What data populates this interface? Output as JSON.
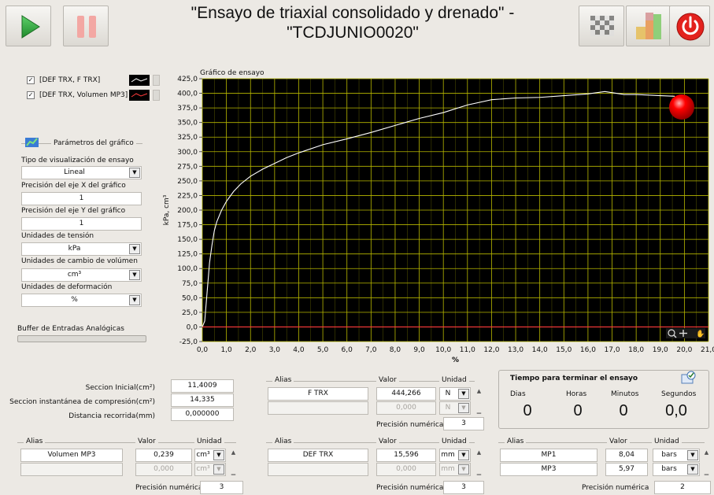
{
  "toolbar": {
    "title_line1": "\"Ensayo de triaxial consolidado y drenado\" -",
    "title_line2": "\"TCDJUNIO0020\""
  },
  "legend": {
    "items": [
      {
        "label": "[DEF TRX, F TRX]",
        "checked": true,
        "color": "#ffffff"
      },
      {
        "label": "[DEF TRX, Volumen MP3]",
        "checked": true,
        "color": "#ff3b3b"
      }
    ]
  },
  "params": {
    "header": "Parámetros del gráfico",
    "viz_label": "Tipo de visualización de ensayo",
    "viz_value": "Lineal",
    "x_prec_label": "Precisión del eje X del gráfico",
    "x_prec_value": "1",
    "y_prec_label": "Precisión del eje Y del gráfico",
    "y_prec_value": "1",
    "stress_label": "Unidades de tensión",
    "stress_value": "kPa",
    "vol_label": "Unidades de cambio de volúmen",
    "vol_value": "cm³",
    "def_label": "Unidades de deformación",
    "def_value": "%"
  },
  "buffer": {
    "label": "Buffer de Entradas Analógicas",
    "level": 0.0
  },
  "chart": {
    "caption": "Gráfico de ensayo",
    "ylabel": "kPa, cm³",
    "xlabel": "%",
    "bg": "#000000",
    "grid_color": "#b8b800",
    "line_color": "#ffffff",
    "zero_line_color": "#ff3030",
    "led_color": "#ff0000"
  },
  "chart_data": {
    "type": "line",
    "title": "Gráfico de ensayo",
    "xlabel": "%",
    "ylabel": "kPa, cm³",
    "xlim": [
      0,
      21
    ],
    "ylim": [
      -25,
      425
    ],
    "x_ticks": [
      "0,0",
      "1,0",
      "2,0",
      "3,0",
      "4,0",
      "5,0",
      "6,0",
      "7,0",
      "8,0",
      "9,0",
      "10,0",
      "11,0",
      "12,0",
      "13,0",
      "14,0",
      "15,0",
      "16,0",
      "17,0",
      "18,0",
      "19,0",
      "20,0",
      "21,0"
    ],
    "y_ticks": [
      "-25,0",
      "0,0",
      "25,0",
      "50,0",
      "75,0",
      "100,0",
      "125,0",
      "150,0",
      "175,0",
      "200,0",
      "225,0",
      "250,0",
      "275,0",
      "300,0",
      "325,0",
      "350,0",
      "375,0",
      "400,0",
      "425,0"
    ],
    "grid": true,
    "series": [
      {
        "name": "[DEF TRX, F TRX]",
        "color": "#ffffff",
        "x": [
          0.0,
          0.1,
          0.2,
          0.3,
          0.4,
          0.5,
          0.6,
          0.8,
          1.0,
          1.3,
          1.6,
          2.0,
          2.5,
          3.0,
          3.5,
          4.0,
          5.0,
          6.0,
          7.0,
          8.0,
          9.0,
          10.0,
          11.0,
          12.0,
          13.0,
          14.0,
          15.0,
          16.0,
          16.7,
          17.5,
          18.0,
          19.0,
          19.6
        ],
        "y": [
          0,
          10,
          60,
          110,
          140,
          165,
          180,
          200,
          215,
          232,
          245,
          258,
          270,
          280,
          290,
          298,
          312,
          322,
          333,
          345,
          357,
          367,
          380,
          389,
          392,
          393,
          396,
          399,
          403,
          398,
          398,
          396,
          395
        ]
      },
      {
        "name": "[DEF TRX, Volumen MP3]",
        "color": "#ff3b3b",
        "x": [
          0.0,
          21.0
        ],
        "y": [
          0,
          0
        ]
      }
    ]
  },
  "stats": {
    "s1_label": "Seccion Inicial(cm²)",
    "s1_value": "11,4009",
    "s2_label": "Seccion instantánea de compresión(cm²)",
    "s2_value": "14,335",
    "s3_label": "Distancia recorrida(mm)",
    "s3_value": "0,000000"
  },
  "force": {
    "alias_h": "Alias",
    "valor_h": "Valor",
    "unidad_h": "Unidad",
    "row1": {
      "alias": "F TRX",
      "value": "444,266",
      "unit": "N"
    },
    "row2": {
      "alias": "",
      "value": "0,000",
      "unit": "N"
    },
    "prec_label": "Precisión numérica",
    "prec_value": "3"
  },
  "timer": {
    "title": "Tiempo para terminar el ensayo",
    "dias_label": "Dias",
    "horas_label": "Horas",
    "min_label": "Minutos",
    "seg_label": "Segundos",
    "dias": "0",
    "horas": "0",
    "min": "0",
    "seg": "0,0"
  },
  "volume": {
    "alias_h": "Alias",
    "valor_h": "Valor",
    "unidad_h": "Unidad",
    "row1": {
      "alias": "Volumen MP3",
      "value": "0,239",
      "unit": "cm³"
    },
    "row2": {
      "alias": "",
      "value": "0,000",
      "unit": "cm³"
    },
    "prec_label": "Precisión numérica",
    "prec_value": "3"
  },
  "deform": {
    "alias_h": "Alias",
    "valor_h": "Valor",
    "unidad_h": "Unidad",
    "row1": {
      "alias": "DEF TRX",
      "value": "15,596",
      "unit": "mm"
    },
    "row2": {
      "alias": "",
      "value": "0,000",
      "unit": "mm"
    },
    "prec_label": "Precisión numérica",
    "prec_value": "3"
  },
  "pressure": {
    "alias_h": "Alias",
    "valor_h": "Valor",
    "unidad_h": "Unidad",
    "row1": {
      "alias": "MP1",
      "value": "8,04",
      "unit": "bars"
    },
    "row2": {
      "alias": "MP3",
      "value": "5,97",
      "unit": "bars"
    },
    "prec_label": "Precisión numérica",
    "prec_value": "2"
  }
}
